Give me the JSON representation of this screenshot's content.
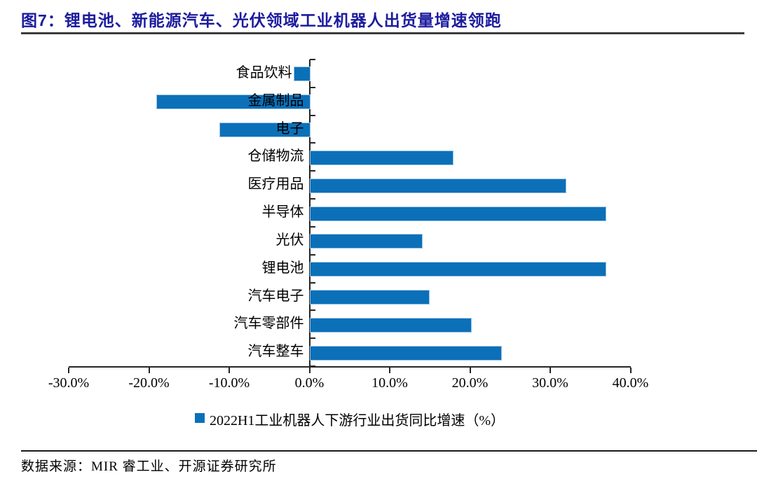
{
  "title": "图7：锂电池、新能源汽车、光伏领域工业机器人出货量增速领跑",
  "source": "数据来源：MIR 睿工业、开源证券研究所",
  "colors": {
    "bar_fill": "#0c70b8",
    "bar_border": "#9fc5e8",
    "title_text": "#1c1c9e",
    "axis": "#262626",
    "title_rule": "#3d3d3d"
  },
  "chart_data": {
    "type": "bar",
    "orientation": "horizontal",
    "title": "图7：锂电池、新能源汽车、光伏领域工业机器人出货量增速领跑",
    "legend": "2022H1工业机器人下游行业出货同比增速（%）",
    "legend_position": "bottom-center",
    "grid": false,
    "xlim": [
      -30,
      40
    ],
    "x_tick_values": [
      -30,
      -20,
      -10,
      0,
      10,
      20,
      30,
      40
    ],
    "x_ticks": [
      "-30.0%",
      "-20.0%",
      "-10.0%",
      "0.0%",
      "10.0%",
      "20.0%",
      "30.0%",
      "40.0%"
    ],
    "categories": [
      "食品饮料",
      "金属制品",
      "电子",
      "仓储物流",
      "医疗用品",
      "半导体",
      "光伏",
      "锂电池",
      "汽车电子",
      "汽车零部件",
      "汽车整车"
    ],
    "values": [
      -2.0,
      -19.1,
      -11.2,
      17.8,
      31.8,
      36.8,
      13.9,
      36.8,
      14.8,
      20.0,
      23.8
    ]
  }
}
